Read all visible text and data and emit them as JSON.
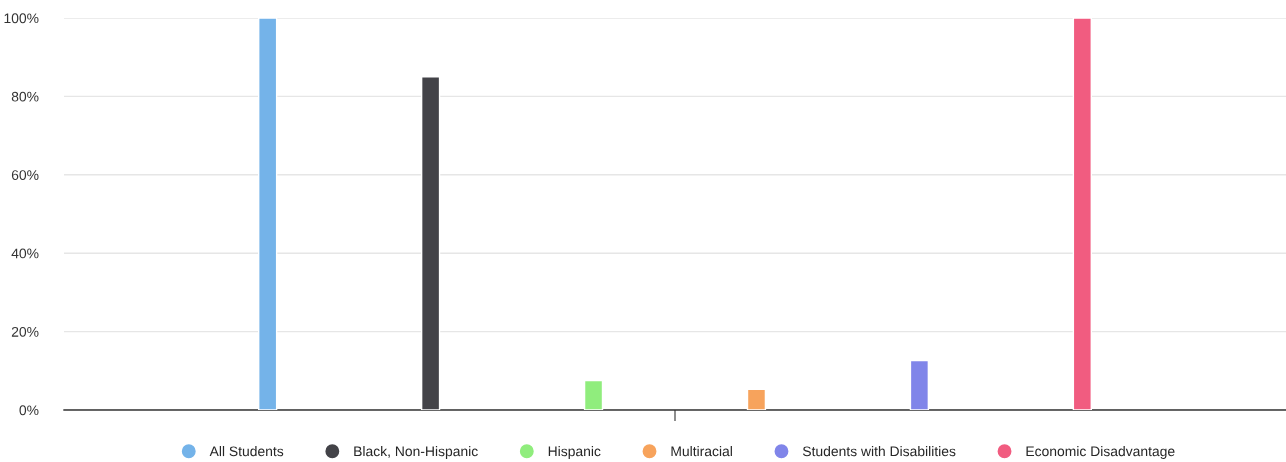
{
  "chart_data": {
    "type": "bar",
    "categories": [
      null
    ],
    "series": [
      {
        "name": "All Students",
        "color": "#74b3e9",
        "values": [
          100
        ]
      },
      {
        "name": "Black, Non-Hispanic",
        "color": "#434348",
        "values": [
          85
        ]
      },
      {
        "name": "Hispanic",
        "color": "#90ed7d",
        "values": [
          7.5
        ]
      },
      {
        "name": "Multiracial",
        "color": "#f7a35c",
        "values": [
          5.3
        ]
      },
      {
        "name": "Students with Disabilities",
        "color": "#8085e9",
        "values": [
          12.6
        ]
      },
      {
        "name": "Economic Disadvantage",
        "color": "#f15c80",
        "values": [
          100
        ]
      }
    ],
    "ylim": [
      0,
      100
    ],
    "yticks": [
      {
        "value": 0,
        "label": "0%"
      },
      {
        "value": 20,
        "label": "20%"
      },
      {
        "value": 40,
        "label": "40%"
      },
      {
        "value": 60,
        "label": "60%"
      },
      {
        "value": 80,
        "label": "80%"
      },
      {
        "value": 100,
        "label": "100%"
      }
    ],
    "grid": "y",
    "legend": "bottom"
  }
}
